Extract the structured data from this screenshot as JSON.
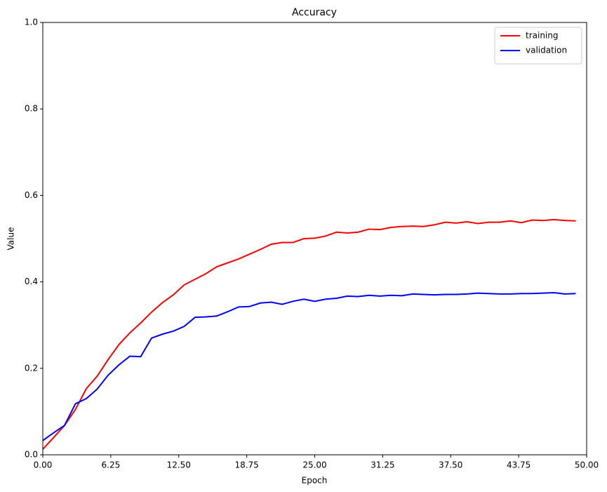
{
  "chart_data": {
    "type": "line",
    "title": "Accuracy",
    "x_label": "Epoch",
    "y_label": "Value",
    "x": [
      0,
      1,
      2,
      3,
      4,
      5,
      6,
      7,
      8,
      9,
      10,
      11,
      12,
      13,
      14,
      15,
      16,
      17,
      18,
      19,
      20,
      21,
      22,
      23,
      24,
      25,
      26,
      27,
      28,
      29,
      30,
      31,
      32,
      33,
      34,
      35,
      36,
      37,
      38,
      39,
      40,
      41,
      42,
      43,
      44,
      45,
      46,
      47,
      48,
      49
    ],
    "series": [
      {
        "name": "training",
        "color": "#ff0000",
        "values": [
          0.013,
          0.04,
          0.068,
          0.105,
          0.153,
          0.182,
          0.22,
          0.255,
          0.282,
          0.305,
          0.33,
          0.352,
          0.37,
          0.393,
          0.406,
          0.419,
          0.435,
          0.444,
          0.453,
          0.464,
          0.475,
          0.487,
          0.491,
          0.491,
          0.5,
          0.501,
          0.506,
          0.515,
          0.513,
          0.515,
          0.522,
          0.521,
          0.526,
          0.528,
          0.529,
          0.528,
          0.532,
          0.538,
          0.536,
          0.539,
          0.535,
          0.538,
          0.538,
          0.541,
          0.537,
          0.543,
          0.542,
          0.544,
          0.542,
          0.541
        ]
      },
      {
        "name": "validation",
        "color": "#0000ff",
        "values": [
          0.033,
          0.051,
          0.068,
          0.118,
          0.13,
          0.152,
          0.184,
          0.208,
          0.228,
          0.227,
          0.27,
          0.279,
          0.286,
          0.297,
          0.318,
          0.319,
          0.321,
          0.331,
          0.342,
          0.343,
          0.351,
          0.353,
          0.348,
          0.355,
          0.36,
          0.355,
          0.36,
          0.362,
          0.367,
          0.366,
          0.369,
          0.367,
          0.369,
          0.368,
          0.372,
          0.371,
          0.37,
          0.371,
          0.371,
          0.372,
          0.374,
          0.373,
          0.372,
          0.372,
          0.373,
          0.373,
          0.374,
          0.375,
          0.372,
          0.373
        ]
      }
    ],
    "xlim": [
      0,
      50
    ],
    "xticks": [
      {
        "value": 0,
        "label": "0.00"
      },
      {
        "value": 6.25,
        "label": "6.25"
      },
      {
        "value": 12.5,
        "label": "12.50"
      },
      {
        "value": 18.75,
        "label": "18.75"
      },
      {
        "value": 25,
        "label": "25.00"
      },
      {
        "value": 31.25,
        "label": "31.25"
      },
      {
        "value": 37.5,
        "label": "37.50"
      },
      {
        "value": 43.75,
        "label": "43.75"
      },
      {
        "value": 50,
        "label": "50.00"
      }
    ],
    "ylim": [
      0,
      1
    ],
    "yticks": [
      {
        "value": 0,
        "label": "0.0"
      },
      0.2,
      0.4,
      0.6,
      0.8,
      {
        "value": 1,
        "label": "1.0"
      }
    ],
    "grid": false,
    "legend": "upper right"
  }
}
